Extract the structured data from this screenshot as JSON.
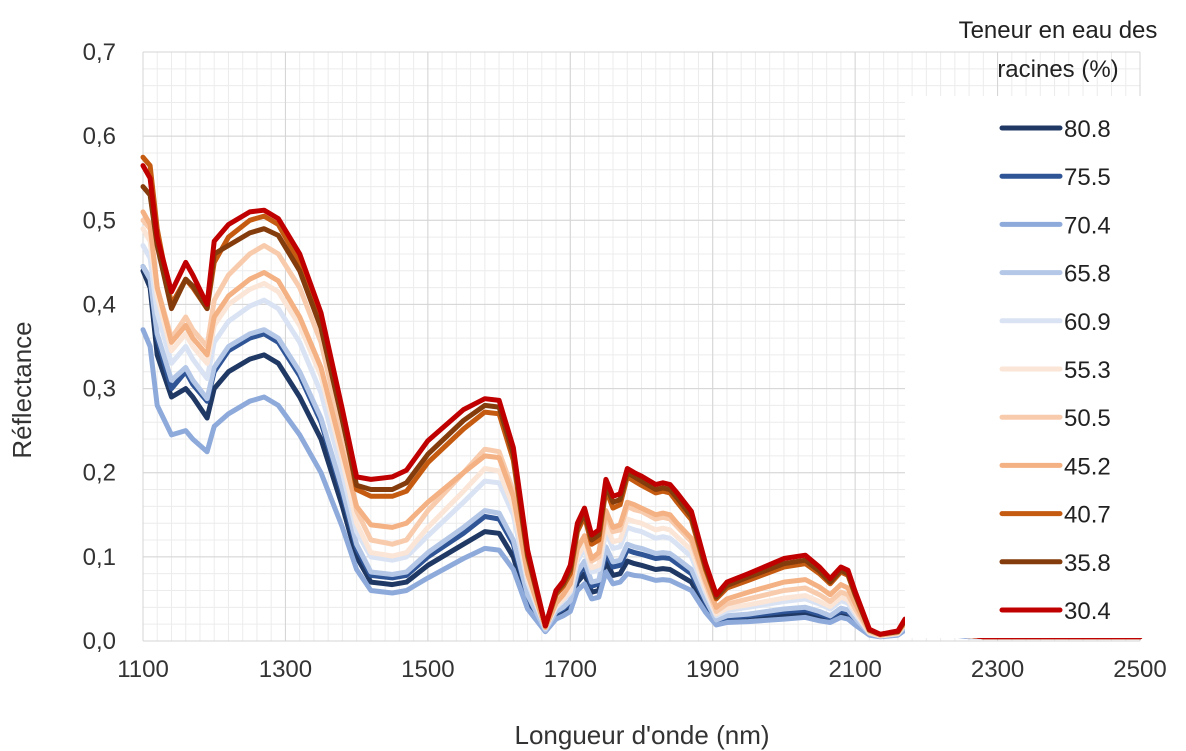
{
  "chart_data": {
    "type": "line",
    "title": "",
    "xlabel": "Longueur d'onde (nm)",
    "ylabel": "Réflectance",
    "xlim": [
      1100,
      2500
    ],
    "ylim": [
      0,
      0.7
    ],
    "x_ticks": [
      1100,
      1300,
      1500,
      1700,
      1900,
      2100,
      2300,
      2500
    ],
    "x_tick_labels": [
      "1100",
      "1300",
      "1500",
      "1700",
      "1900",
      "2100",
      "2300",
      "2500"
    ],
    "y_ticks": [
      0,
      0.1,
      0.2,
      0.3,
      0.4,
      0.5,
      0.6,
      0.7
    ],
    "y_tick_labels": [
      "0,0",
      "0,1",
      "0,2",
      "0,3",
      "0,4",
      "0,5",
      "0,6",
      "0,7"
    ],
    "grid": true,
    "legend": {
      "title": "Teneur en eau des racines (%)",
      "title_lines": [
        "Teneur en eau des",
        "racines (%)"
      ],
      "position": "right"
    },
    "x": [
      1100,
      1110,
      1120,
      1140,
      1160,
      1170,
      1190,
      1200,
      1220,
      1250,
      1270,
      1290,
      1320,
      1350,
      1380,
      1400,
      1420,
      1450,
      1470,
      1500,
      1550,
      1580,
      1600,
      1620,
      1640,
      1665,
      1680,
      1690,
      1700,
      1710,
      1720,
      1730,
      1740,
      1750,
      1760,
      1770,
      1780,
      1790,
      1800,
      1820,
      1830,
      1840,
      1850,
      1870,
      1890,
      1905,
      1920,
      1950,
      2000,
      2030,
      2050,
      2065,
      2080,
      2090,
      2100,
      2120,
      2135,
      2160,
      2170,
      2180,
      2190,
      2200,
      2210,
      2220,
      2240,
      2260,
      2280,
      2300,
      2400,
      2500
    ],
    "series": [
      {
        "name": "80.8",
        "color": "#1f3864",
        "values": [
          0.44,
          0.42,
          0.34,
          0.29,
          0.3,
          0.29,
          0.265,
          0.3,
          0.32,
          0.335,
          0.34,
          0.33,
          0.29,
          0.24,
          0.16,
          0.1,
          0.07,
          0.067,
          0.07,
          0.09,
          0.115,
          0.13,
          0.128,
          0.1,
          0.045,
          0.012,
          0.03,
          0.035,
          0.04,
          0.07,
          0.08,
          0.058,
          0.06,
          0.095,
          0.078,
          0.08,
          0.095,
          0.092,
          0.09,
          0.085,
          0.086,
          0.085,
          0.08,
          0.07,
          0.04,
          0.022,
          0.025,
          0.026,
          0.03,
          0.032,
          0.028,
          0.025,
          0.032,
          0.03,
          0.022,
          0.008,
          0.006,
          0.008,
          0.015,
          0.014,
          0.02,
          0.028,
          0.022,
          0.012,
          0.008,
          0.006,
          0.005,
          0.005,
          0.005,
          0.005
        ]
      },
      {
        "name": "75.5",
        "color": "#2f5597",
        "values": [
          0.445,
          0.43,
          0.36,
          0.3,
          0.32,
          0.305,
          0.285,
          0.32,
          0.345,
          0.36,
          0.365,
          0.355,
          0.315,
          0.26,
          0.175,
          0.11,
          0.078,
          0.075,
          0.078,
          0.1,
          0.128,
          0.148,
          0.145,
          0.115,
          0.052,
          0.013,
          0.033,
          0.038,
          0.045,
          0.078,
          0.09,
          0.065,
          0.068,
          0.105,
          0.088,
          0.09,
          0.108,
          0.105,
          0.103,
          0.098,
          0.099,
          0.098,
          0.092,
          0.08,
          0.046,
          0.024,
          0.028,
          0.03,
          0.035,
          0.037,
          0.032,
          0.028,
          0.036,
          0.034,
          0.025,
          0.008,
          0.006,
          0.008,
          0.016,
          0.015,
          0.022,
          0.03,
          0.024,
          0.013,
          0.008,
          0.006,
          0.005,
          0.005,
          0.005,
          0.005
        ]
      },
      {
        "name": "70.4",
        "color": "#8eaadb",
        "values": [
          0.37,
          0.35,
          0.28,
          0.245,
          0.25,
          0.24,
          0.225,
          0.255,
          0.27,
          0.285,
          0.29,
          0.28,
          0.245,
          0.2,
          0.135,
          0.085,
          0.06,
          0.057,
          0.06,
          0.075,
          0.098,
          0.11,
          0.108,
          0.085,
          0.038,
          0.011,
          0.026,
          0.03,
          0.035,
          0.06,
          0.068,
          0.05,
          0.052,
          0.082,
          0.068,
          0.07,
          0.08,
          0.078,
          0.077,
          0.072,
          0.073,
          0.072,
          0.068,
          0.06,
          0.034,
          0.019,
          0.022,
          0.023,
          0.026,
          0.028,
          0.024,
          0.022,
          0.028,
          0.026,
          0.019,
          0.007,
          0.005,
          0.007,
          0.013,
          0.012,
          0.018,
          0.024,
          0.019,
          0.01,
          0.007,
          0.005,
          0.005,
          0.005,
          0.005,
          0.005
        ]
      },
      {
        "name": "65.8",
        "color": "#b4c7e7",
        "values": [
          0.445,
          0.43,
          0.365,
          0.31,
          0.325,
          0.31,
          0.288,
          0.325,
          0.35,
          0.365,
          0.37,
          0.36,
          0.32,
          0.265,
          0.18,
          0.115,
          0.082,
          0.079,
          0.082,
          0.105,
          0.135,
          0.155,
          0.152,
          0.12,
          0.055,
          0.013,
          0.035,
          0.04,
          0.048,
          0.082,
          0.095,
          0.07,
          0.072,
          0.112,
          0.094,
          0.096,
          0.115,
          0.112,
          0.11,
          0.104,
          0.105,
          0.104,
          0.098,
          0.085,
          0.049,
          0.025,
          0.03,
          0.032,
          0.038,
          0.04,
          0.035,
          0.03,
          0.039,
          0.037,
          0.027,
          0.009,
          0.006,
          0.008,
          0.017,
          0.016,
          0.023,
          0.032,
          0.025,
          0.013,
          0.008,
          0.006,
          0.005,
          0.005,
          0.005,
          0.005
        ]
      },
      {
        "name": "60.9",
        "color": "#dae3f3",
        "values": [
          0.47,
          0.455,
          0.39,
          0.33,
          0.35,
          0.335,
          0.312,
          0.355,
          0.38,
          0.398,
          0.405,
          0.395,
          0.355,
          0.295,
          0.2,
          0.13,
          0.1,
          0.096,
          0.1,
          0.125,
          0.165,
          0.19,
          0.188,
          0.15,
          0.07,
          0.015,
          0.04,
          0.048,
          0.058,
          0.095,
          0.11,
          0.082,
          0.085,
          0.13,
          0.11,
          0.112,
          0.135,
          0.132,
          0.13,
          0.122,
          0.124,
          0.122,
          0.115,
          0.1,
          0.058,
          0.03,
          0.036,
          0.04,
          0.047,
          0.05,
          0.044,
          0.038,
          0.048,
          0.045,
          0.032,
          0.01,
          0.006,
          0.009,
          0.019,
          0.018,
          0.026,
          0.035,
          0.028,
          0.014,
          0.009,
          0.006,
          0.005,
          0.005,
          0.005,
          0.005
        ]
      },
      {
        "name": "55.3",
        "color": "#fbe5d6",
        "values": [
          0.49,
          0.475,
          0.41,
          0.345,
          0.365,
          0.35,
          0.33,
          0.375,
          0.4,
          0.418,
          0.425,
          0.415,
          0.375,
          0.315,
          0.215,
          0.14,
          0.105,
          0.101,
          0.105,
          0.135,
          0.178,
          0.205,
          0.202,
          0.16,
          0.075,
          0.016,
          0.042,
          0.05,
          0.06,
          0.1,
          0.116,
          0.087,
          0.09,
          0.138,
          0.118,
          0.12,
          0.145,
          0.142,
          0.14,
          0.132,
          0.134,
          0.132,
          0.124,
          0.108,
          0.062,
          0.032,
          0.039,
          0.043,
          0.051,
          0.054,
          0.047,
          0.041,
          0.052,
          0.049,
          0.035,
          0.01,
          0.006,
          0.009,
          0.02,
          0.019,
          0.027,
          0.036,
          0.029,
          0.015,
          0.009,
          0.006,
          0.005,
          0.005,
          0.005,
          0.005
        ]
      },
      {
        "name": "50.5",
        "color": "#f8cbad",
        "values": [
          0.5,
          0.49,
          0.42,
          0.36,
          0.385,
          0.37,
          0.35,
          0.405,
          0.435,
          0.46,
          0.47,
          0.46,
          0.42,
          0.355,
          0.245,
          0.155,
          0.12,
          0.115,
          0.12,
          0.155,
          0.2,
          0.228,
          0.225,
          0.178,
          0.082,
          0.016,
          0.045,
          0.055,
          0.068,
          0.11,
          0.125,
          0.095,
          0.1,
          0.15,
          0.13,
          0.132,
          0.16,
          0.156,
          0.154,
          0.145,
          0.147,
          0.145,
          0.136,
          0.118,
          0.068,
          0.035,
          0.044,
          0.05,
          0.06,
          0.063,
          0.055,
          0.047,
          0.058,
          0.055,
          0.039,
          0.011,
          0.007,
          0.01,
          0.021,
          0.02,
          0.028,
          0.038,
          0.03,
          0.015,
          0.009,
          0.006,
          0.005,
          0.005,
          0.005,
          0.005
        ]
      },
      {
        "name": "45.2",
        "color": "#f4b183",
        "values": [
          0.51,
          0.495,
          0.42,
          0.355,
          0.375,
          0.36,
          0.34,
          0.385,
          0.41,
          0.43,
          0.438,
          0.428,
          0.385,
          0.325,
          0.225,
          0.16,
          0.138,
          0.135,
          0.14,
          0.165,
          0.2,
          0.22,
          0.218,
          0.172,
          0.08,
          0.016,
          0.045,
          0.055,
          0.068,
          0.11,
          0.125,
          0.098,
          0.105,
          0.155,
          0.135,
          0.138,
          0.165,
          0.162,
          0.158,
          0.15,
          0.152,
          0.15,
          0.14,
          0.122,
          0.072,
          0.04,
          0.05,
          0.058,
          0.07,
          0.073,
          0.064,
          0.055,
          0.067,
          0.063,
          0.045,
          0.012,
          0.007,
          0.01,
          0.022,
          0.021,
          0.03,
          0.04,
          0.031,
          0.016,
          0.01,
          0.007,
          0.005,
          0.005,
          0.005,
          0.005
        ]
      },
      {
        "name": "40.7",
        "color": "#c55a11",
        "values": [
          0.575,
          0.565,
          0.49,
          0.4,
          0.43,
          0.42,
          0.395,
          0.45,
          0.48,
          0.5,
          0.505,
          0.495,
          0.45,
          0.38,
          0.265,
          0.18,
          0.172,
          0.172,
          0.178,
          0.212,
          0.252,
          0.272,
          0.27,
          0.215,
          0.1,
          0.018,
          0.055,
          0.065,
          0.08,
          0.13,
          0.148,
          0.115,
          0.12,
          0.18,
          0.158,
          0.162,
          0.195,
          0.19,
          0.185,
          0.176,
          0.178,
          0.176,
          0.165,
          0.144,
          0.085,
          0.05,
          0.063,
          0.072,
          0.088,
          0.092,
          0.08,
          0.068,
          0.082,
          0.078,
          0.055,
          0.013,
          0.008,
          0.011,
          0.024,
          0.023,
          0.032,
          0.042,
          0.033,
          0.017,
          0.01,
          0.007,
          0.005,
          0.005,
          0.005,
          0.005
        ]
      },
      {
        "name": "35.8",
        "color": "#843c0c",
        "values": [
          0.54,
          0.53,
          0.47,
          0.395,
          0.43,
          0.422,
          0.395,
          0.46,
          0.47,
          0.485,
          0.49,
          0.482,
          0.44,
          0.372,
          0.262,
          0.185,
          0.18,
          0.18,
          0.188,
          0.222,
          0.262,
          0.28,
          0.278,
          0.222,
          0.103,
          0.018,
          0.058,
          0.068,
          0.085,
          0.135,
          0.152,
          0.12,
          0.126,
          0.185,
          0.165,
          0.168,
          0.2,
          0.195,
          0.19,
          0.18,
          0.182,
          0.18,
          0.17,
          0.148,
          0.088,
          0.052,
          0.066,
          0.076,
          0.092,
          0.096,
          0.083,
          0.07,
          0.084,
          0.08,
          0.056,
          0.013,
          0.008,
          0.011,
          0.025,
          0.024,
          0.033,
          0.043,
          0.034,
          0.017,
          0.01,
          0.007,
          0.005,
          0.005,
          0.005,
          0.005
        ]
      },
      {
        "name": "30.4",
        "color": "#c00000",
        "values": [
          0.565,
          0.55,
          0.48,
          0.415,
          0.45,
          0.435,
          0.4,
          0.475,
          0.495,
          0.51,
          0.512,
          0.502,
          0.46,
          0.39,
          0.275,
          0.195,
          0.192,
          0.195,
          0.203,
          0.238,
          0.275,
          0.288,
          0.286,
          0.23,
          0.108,
          0.018,
          0.06,
          0.071,
          0.09,
          0.14,
          0.158,
          0.126,
          0.132,
          0.192,
          0.172,
          0.175,
          0.205,
          0.2,
          0.196,
          0.186,
          0.188,
          0.186,
          0.176,
          0.154,
          0.092,
          0.055,
          0.07,
          0.08,
          0.098,
          0.102,
          0.088,
          0.074,
          0.088,
          0.084,
          0.059,
          0.014,
          0.008,
          0.012,
          0.026,
          0.025,
          0.035,
          0.045,
          0.036,
          0.018,
          0.011,
          0.007,
          0.005,
          0.005,
          0.005,
          0.005
        ]
      }
    ]
  }
}
